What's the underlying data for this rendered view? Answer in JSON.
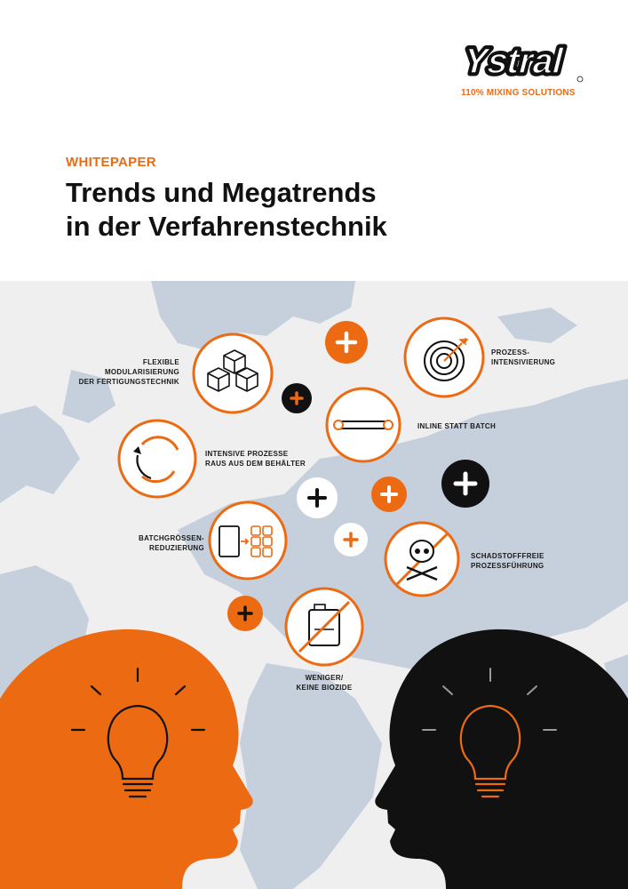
{
  "brand": {
    "logo_name": "Ystral",
    "tagline": "110% MIXING SOLUTIONS",
    "accent_color": "#ec6a12"
  },
  "header": {
    "kicker": "WHITEPAPER",
    "title_line1": "Trends und Megatrends",
    "title_line2": "in der Verfahrenstechnik"
  },
  "trends": [
    {
      "icon": "cubes-icon",
      "lines": [
        "FLEXIBLE",
        "MODULARISIERUNG",
        "DER FERTIGUNGSTECHNIK"
      ]
    },
    {
      "icon": "target-icon",
      "lines": [
        "PROZESS-",
        "INTENSIVIERUNG"
      ]
    },
    {
      "icon": "inline-pipe-icon",
      "lines": [
        "INLINE STATT BATCH"
      ]
    },
    {
      "icon": "cycle-arrows-icon",
      "lines": [
        "INTENSIVE PROZESSE",
        "RAUS AUS DEM BEHÄLTER"
      ]
    },
    {
      "icon": "batch-split-icon",
      "lines": [
        "BATCHGRÖSSEN-",
        "REDUZIERUNG"
      ]
    },
    {
      "icon": "skull-crossed-icon",
      "lines": [
        "SCHADSTOFFFREIE",
        "PROZESSFÜHRUNG"
      ]
    },
    {
      "icon": "canister-crossed-icon",
      "lines": [
        "WENIGER/",
        "KEINE BIOZIDE"
      ]
    }
  ],
  "colors": {
    "orange": "#ec6a12",
    "black": "#111111",
    "map": "#c6cfdc",
    "background": "#efefef"
  }
}
